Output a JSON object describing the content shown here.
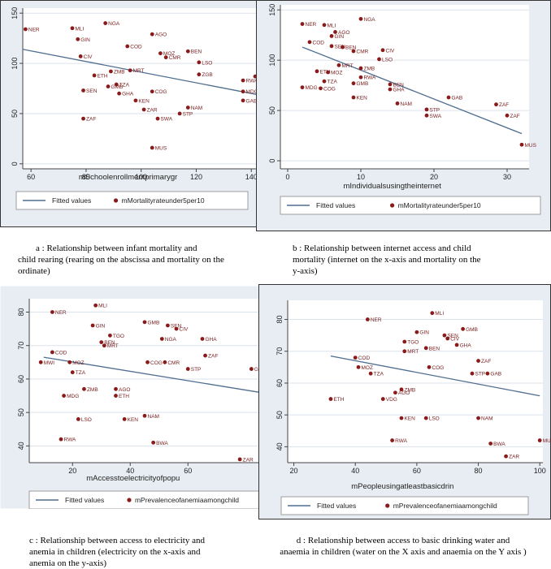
{
  "chart_data": [
    {
      "type": "scatter",
      "xlabel": "mSchoolenrollmentprimarygr",
      "ylabel": "",
      "xlim": [
        57,
        142
      ],
      "ylim": [
        -5,
        155
      ],
      "xticks": [
        60,
        80,
        100,
        120,
        140
      ],
      "yticks": [
        0,
        50,
        100,
        150
      ],
      "grid": true,
      "legend_position": "bottom",
      "legend": [
        "Fitted values",
        "mMortalityrateunder5per10"
      ],
      "fitted": [
        [
          57,
          114
        ],
        [
          142,
          69
        ]
      ],
      "points": [
        {
          "label": "NER",
          "x": 58,
          "y": 134
        },
        {
          "label": "MLI",
          "x": 75,
          "y": 135
        },
        {
          "label": "NGA",
          "x": 87,
          "y": 140
        },
        {
          "label": "GIN",
          "x": 77,
          "y": 124
        },
        {
          "label": "AGO",
          "x": 104,
          "y": 129
        },
        {
          "label": "COD",
          "x": 95,
          "y": 117
        },
        {
          "label": "CIV",
          "x": 78,
          "y": 107
        },
        {
          "label": "MOZ",
          "x": 107,
          "y": 110
        },
        {
          "label": "CMR",
          "x": 109,
          "y": 106
        },
        {
          "label": "BEN",
          "x": 117,
          "y": 112
        },
        {
          "label": "LSO",
          "x": 121,
          "y": 101
        },
        {
          "label": "ETH",
          "x": 83,
          "y": 88
        },
        {
          "label": "ZMB",
          "x": 89,
          "y": 92
        },
        {
          "label": "MRT",
          "x": 96,
          "y": 93
        },
        {
          "label": "ZGB",
          "x": 121,
          "y": 89
        },
        {
          "label": "RWA",
          "x": 137,
          "y": 83
        },
        {
          "label": "MWI",
          "x": 145,
          "y": 87
        },
        {
          "label": "TZA",
          "x": 91,
          "y": 79
        },
        {
          "label": "GMB",
          "x": 88,
          "y": 77
        },
        {
          "label": "SEN",
          "x": 79,
          "y": 73
        },
        {
          "label": "GHA",
          "x": 92,
          "y": 70
        },
        {
          "label": "COG",
          "x": 104,
          "y": 72
        },
        {
          "label": "MDG",
          "x": 137,
          "y": 72
        },
        {
          "label": "KEN",
          "x": 98,
          "y": 63
        },
        {
          "label": "GAB",
          "x": 137,
          "y": 63
        },
        {
          "label": "ZAR",
          "x": 101,
          "y": 54
        },
        {
          "label": "NAM",
          "x": 117,
          "y": 56
        },
        {
          "label": "STP",
          "x": 114,
          "y": 50
        },
        {
          "label": "ZAF",
          "x": 79,
          "y": 45
        },
        {
          "label": "SWA",
          "x": 106,
          "y": 45
        },
        {
          "label": "MUS",
          "x": 104,
          "y": 16
        }
      ]
    },
    {
      "type": "scatter",
      "xlabel": "mIndividualsusingtheinternet",
      "ylabel": "",
      "xlim": [
        -1,
        33
      ],
      "ylim": [
        -8,
        155
      ],
      "xticks": [
        0,
        10,
        20,
        30
      ],
      "yticks": [
        0,
        50,
        100,
        150
      ],
      "grid": true,
      "legend_position": "bottom",
      "legend": [
        "Fitted values",
        "mMortalityrateunder5per10"
      ],
      "fitted": [
        [
          2,
          113
        ],
        [
          32,
          27
        ]
      ],
      "points": [
        {
          "label": "NER",
          "x": 2,
          "y": 136
        },
        {
          "label": "MLI",
          "x": 5,
          "y": 135
        },
        {
          "label": "NGA",
          "x": 10,
          "y": 141
        },
        {
          "label": "AGO",
          "x": 6.5,
          "y": 128
        },
        {
          "label": "GIN",
          "x": 6,
          "y": 124
        },
        {
          "label": "COD",
          "x": 3,
          "y": 118
        },
        {
          "label": "SEN",
          "x": 6,
          "y": 114
        },
        {
          "label": "BEN",
          "x": 7.5,
          "y": 113
        },
        {
          "label": "CMR",
          "x": 9,
          "y": 109
        },
        {
          "label": "CIV",
          "x": 13,
          "y": 110
        },
        {
          "label": "LSO",
          "x": 12.5,
          "y": 101
        },
        {
          "label": "MRT",
          "x": 7,
          "y": 95
        },
        {
          "label": "ZMB",
          "x": 10,
          "y": 92
        },
        {
          "label": "ETH",
          "x": 4,
          "y": 89
        },
        {
          "label": "MOZ",
          "x": 5.5,
          "y": 88
        },
        {
          "label": "RWA",
          "x": 10,
          "y": 83
        },
        {
          "label": "TZA",
          "x": 5,
          "y": 79
        },
        {
          "label": "GMB",
          "x": 9,
          "y": 77
        },
        {
          "label": "MDG",
          "x": 2,
          "y": 73
        },
        {
          "label": "COG",
          "x": 4.5,
          "y": 72
        },
        {
          "label": "BEN",
          "x": 14,
          "y": 76
        },
        {
          "label": "GHA",
          "x": 14,
          "y": 71
        },
        {
          "label": "KEN",
          "x": 9,
          "y": 63
        },
        {
          "label": "GAB",
          "x": 22,
          "y": 63
        },
        {
          "label": "NAM",
          "x": 15,
          "y": 57
        },
        {
          "label": "ZAF",
          "x": 28.5,
          "y": 56
        },
        {
          "label": "STP",
          "x": 19,
          "y": 51
        },
        {
          "label": "SWA",
          "x": 19,
          "y": 45
        },
        {
          "label": "ZAF",
          "x": 30,
          "y": 45
        },
        {
          "label": "MUS",
          "x": 32,
          "y": 16
        }
      ]
    },
    {
      "type": "scatter",
      "xlabel": "mAccesstoelectricityofpopu",
      "ylabel": "",
      "xlim": [
        5,
        85
      ],
      "ylim": [
        35,
        84
      ],
      "xticks": [
        0,
        20,
        40,
        60
      ],
      "yticks": [
        40,
        50,
        60,
        70,
        80
      ],
      "grid": true,
      "legend_position": "bottom",
      "legend": [
        "Fitted values",
        "mPrevalenceofanemiaamongchild"
      ],
      "fitted": [
        [
          10,
          66.5
        ],
        [
          85,
          56
        ]
      ],
      "points": [
        {
          "label": "MLI",
          "x": 28,
          "y": 82
        },
        {
          "label": "NER",
          "x": 13,
          "y": 80
        },
        {
          "label": "GIN",
          "x": 27,
          "y": 76
        },
        {
          "label": "GMB",
          "x": 45,
          "y": 77
        },
        {
          "label": "SEN",
          "x": 53,
          "y": 76
        },
        {
          "label": "CIV",
          "x": 56,
          "y": 75
        },
        {
          "label": "TGO",
          "x": 33,
          "y": 73
        },
        {
          "label": "NGA",
          "x": 51,
          "y": 72
        },
        {
          "label": "GHA",
          "x": 65,
          "y": 72
        },
        {
          "label": "BEN",
          "x": 30,
          "y": 71
        },
        {
          "label": "MRT",
          "x": 31,
          "y": 70
        },
        {
          "label": "COD",
          "x": 13,
          "y": 68
        },
        {
          "label": "ZAF",
          "x": 66,
          "y": 67
        },
        {
          "label": "MWI",
          "x": 9,
          "y": 65
        },
        {
          "label": "MOZ",
          "x": 19,
          "y": 65
        },
        {
          "label": "COG",
          "x": 46,
          "y": 65
        },
        {
          "label": "CMR",
          "x": 52,
          "y": 65
        },
        {
          "label": "TZA",
          "x": 20,
          "y": 62
        },
        {
          "label": "STP",
          "x": 60,
          "y": 63
        },
        {
          "label": "GAB",
          "x": 82,
          "y": 63
        },
        {
          "label": "ZMB",
          "x": 24,
          "y": 57
        },
        {
          "label": "AGO",
          "x": 35,
          "y": 57
        },
        {
          "label": "MDG",
          "x": 17,
          "y": 55
        },
        {
          "label": "ETH",
          "x": 35,
          "y": 55
        },
        {
          "label": "LSO",
          "x": 22,
          "y": 48
        },
        {
          "label": "KEN",
          "x": 38,
          "y": 48
        },
        {
          "label": "NAM",
          "x": 45,
          "y": 49
        },
        {
          "label": "RWA",
          "x": 16,
          "y": 42
        },
        {
          "label": "BWA",
          "x": 48,
          "y": 41
        },
        {
          "label": "ZAR",
          "x": 78,
          "y": 36
        }
      ]
    },
    {
      "type": "scatter",
      "xlabel": "mPeopleusingatleastbasicdrin",
      "ylabel": "",
      "xlim": [
        18,
        101
      ],
      "ylim": [
        35,
        86
      ],
      "xticks": [
        20,
        40,
        60,
        80,
        100
      ],
      "yticks": [
        40,
        50,
        60,
        70,
        80
      ],
      "grid": true,
      "legend_position": "bottom",
      "legend": [
        "Fitted values",
        "mPrevalenceofanemiaamongchild"
      ],
      "fitted": [
        [
          32,
          68.5
        ],
        [
          100,
          56
        ]
      ],
      "points": [
        {
          "label": "MLI",
          "x": 65,
          "y": 82
        },
        {
          "label": "NER",
          "x": 44,
          "y": 80
        },
        {
          "label": "GIN",
          "x": 60,
          "y": 76
        },
        {
          "label": "GMB",
          "x": 75,
          "y": 77
        },
        {
          "label": "SEN",
          "x": 69,
          "y": 75
        },
        {
          "label": "CIV",
          "x": 70,
          "y": 74
        },
        {
          "label": "TGO",
          "x": 56,
          "y": 73
        },
        {
          "label": "GHA",
          "x": 73,
          "y": 72
        },
        {
          "label": "BEN",
          "x": 63,
          "y": 71
        },
        {
          "label": "MRT",
          "x": 56,
          "y": 70
        },
        {
          "label": "COD",
          "x": 40,
          "y": 68
        },
        {
          "label": "ZAF",
          "x": 80,
          "y": 67
        },
        {
          "label": "MOZ",
          "x": 41,
          "y": 65
        },
        {
          "label": "COG",
          "x": 64,
          "y": 65
        },
        {
          "label": "TZA",
          "x": 45,
          "y": 63
        },
        {
          "label": "STP",
          "x": 78,
          "y": 63
        },
        {
          "label": "GAB",
          "x": 83,
          "y": 63
        },
        {
          "label": "ZMB",
          "x": 55,
          "y": 58
        },
        {
          "label": "AGO",
          "x": 53,
          "y": 57
        },
        {
          "label": "VDG",
          "x": 49,
          "y": 55
        },
        {
          "label": "ETH",
          "x": 32,
          "y": 55
        },
        {
          "label": "LSO",
          "x": 63,
          "y": 49
        },
        {
          "label": "KEN",
          "x": 55,
          "y": 49
        },
        {
          "label": "NAM",
          "x": 80,
          "y": 49
        },
        {
          "label": "RWA",
          "x": 52,
          "y": 42
        },
        {
          "label": "BWA",
          "x": 84,
          "y": 41
        },
        {
          "label": "MUI",
          "x": 100,
          "y": 42
        },
        {
          "label": "ZAR",
          "x": 89,
          "y": 37
        }
      ]
    }
  ],
  "captions": {
    "a": [
      "a : Relationship between infant mortality and",
      "child rearing (rearing on the abscissa and mortality on the",
      "ordinate)"
    ],
    "b": [
      "b : Relationship between internet access and child",
      "mortality (internet on the x-axis and mortality on the",
      "y-axis)"
    ],
    "c": [
      "c : Relationship between access to electricity and",
      "anemia in children (electricity on the x-axis and",
      "anemia on the y-axis)"
    ],
    "d": [
      "d : Relationship between access to basic drinking water and",
      "anaemia in children (water on the X axis and anaemia on the Y axis )"
    ]
  },
  "colors": {
    "plot_bg": "#ffffff",
    "outer_bg": "#e8edf3",
    "fitted": "#4f6d8f",
    "point": "#8b1a1a",
    "grid": "#dbe3ec"
  }
}
